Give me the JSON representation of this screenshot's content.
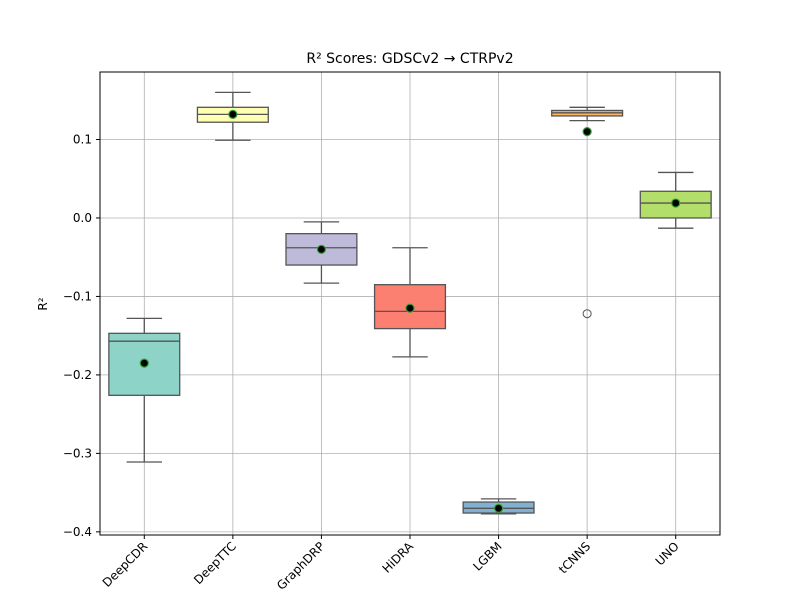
{
  "chart_data": {
    "type": "box",
    "title": "R² Scores: GDSCv2 → CTRPv2",
    "xlabel": "",
    "ylabel": "R²",
    "ylim": [
      -0.404,
      0.186
    ],
    "yticks": [
      0.1,
      0.0,
      -0.1,
      -0.2,
      -0.3,
      -0.4
    ],
    "ytick_labels": [
      "0.1",
      "0.0",
      "−0.1",
      "−0.2",
      "−0.3",
      "−0.4"
    ],
    "grid": true,
    "categories": [
      "DeepCDR",
      "DeepTTC",
      "GraphDRP",
      "HiDRA",
      "LGBM",
      "tCNNS",
      "UNO"
    ],
    "boxes": [
      {
        "name": "DeepCDR",
        "whisker_low": -0.311,
        "q1": -0.226,
        "median": -0.157,
        "q3": -0.147,
        "whisker_high": -0.128,
        "mean": -0.185,
        "outliers": [],
        "color": "#8dd3c7"
      },
      {
        "name": "DeepTTC",
        "whisker_low": 0.099,
        "q1": 0.122,
        "median": 0.132,
        "q3": 0.141,
        "whisker_high": 0.16,
        "mean": 0.132,
        "outliers": [],
        "color": "#ffffb3"
      },
      {
        "name": "GraphDRP",
        "whisker_low": -0.083,
        "q1": -0.06,
        "median": -0.038,
        "q3": -0.02,
        "whisker_high": -0.005,
        "mean": -0.04,
        "outliers": [],
        "color": "#bebada"
      },
      {
        "name": "HiDRA",
        "whisker_low": -0.177,
        "q1": -0.141,
        "median": -0.119,
        "q3": -0.085,
        "whisker_high": -0.038,
        "mean": -0.115,
        "outliers": [],
        "color": "#fb8072"
      },
      {
        "name": "LGBM",
        "whisker_low": -0.377,
        "q1": -0.376,
        "median": -0.37,
        "q3": -0.362,
        "whisker_high": -0.358,
        "mean": -0.37,
        "outliers": [],
        "color": "#80b1d3"
      },
      {
        "name": "tCNNS",
        "whisker_low": 0.124,
        "q1": 0.13,
        "median": 0.134,
        "q3": 0.137,
        "whisker_high": 0.141,
        "mean": 0.11,
        "outliers": [
          -0.122
        ],
        "color": "#fdb462"
      },
      {
        "name": "UNO",
        "whisker_low": -0.013,
        "q1": 0.0,
        "median": 0.019,
        "q3": 0.034,
        "whisker_high": 0.058,
        "mean": 0.019,
        "outliers": [],
        "color": "#b3de69"
      }
    ]
  }
}
